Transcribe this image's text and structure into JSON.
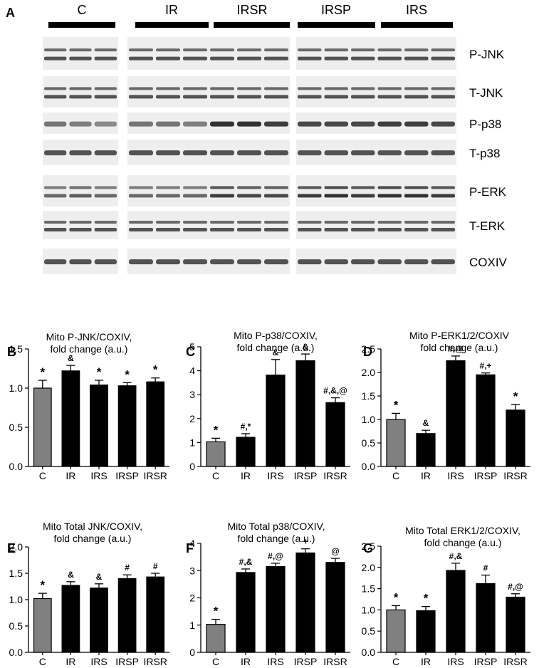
{
  "panel_a": {
    "letter": "A",
    "groups": [
      "C",
      "IR",
      "IRSR",
      "IRSP",
      "IRS"
    ],
    "rows": [
      "P-JNK",
      "T-JNK",
      "P-p38",
      "T-p38",
      "P-ERK",
      "T-ERK",
      "COXIV"
    ]
  },
  "chart_data": [
    {
      "panel": "B",
      "type": "bar",
      "title": [
        "Mito P-JNK/COXIV,",
        "fold change (a.u.)"
      ],
      "categories": [
        "C",
        "IR",
        "IRS",
        "IRSP",
        "IRSR"
      ],
      "values": [
        1.0,
        1.22,
        1.04,
        1.03,
        1.08
      ],
      "errors": [
        0.1,
        0.07,
        0.06,
        0.04,
        0.05
      ],
      "annotations": [
        "*",
        "&",
        "*",
        "*",
        "*"
      ],
      "bar_colors": [
        "#808080",
        "#000000",
        "#000000",
        "#000000",
        "#000000"
      ],
      "ylim": [
        0,
        1.5
      ],
      "yticks": [
        "0.0",
        "0.5",
        "1.0",
        "1.5"
      ]
    },
    {
      "panel": "C",
      "type": "bar",
      "title": [
        "Mito P-p38/COXIV,",
        "fold change (a.u.)"
      ],
      "categories": [
        "C",
        "IR",
        "IRS",
        "IRSP",
        "IRSR"
      ],
      "values": [
        1.03,
        1.22,
        3.82,
        4.42,
        2.67
      ],
      "errors": [
        0.15,
        0.15,
        0.65,
        0.28,
        0.2
      ],
      "annotations": [
        "*",
        "#,*",
        "&",
        "&",
        "#,&,@"
      ],
      "bar_colors": [
        "#808080",
        "#000000",
        "#000000",
        "#000000",
        "#000000"
      ],
      "ylim": [
        0,
        5
      ],
      "yticks": [
        "0",
        "1",
        "2",
        "3",
        "4",
        "5"
      ]
    },
    {
      "panel": "D",
      "type": "bar",
      "title": [
        "Mito P-ERK1/2/COXIV",
        "fold change (a.u.)"
      ],
      "categories": [
        "C",
        "IR",
        "IRS",
        "IRSP",
        "IRSR"
      ],
      "values": [
        1.0,
        0.7,
        2.25,
        1.95,
        1.2
      ],
      "errors": [
        0.13,
        0.07,
        0.1,
        0.04,
        0.12
      ],
      "annotations": [
        "*",
        "&",
        "#,@",
        "#,+",
        "*"
      ],
      "bar_colors": [
        "#808080",
        "#000000",
        "#000000",
        "#000000",
        "#000000"
      ],
      "ylim": [
        0,
        2.5
      ],
      "yticks": [
        "0.0",
        "0.5",
        "1.0",
        "1.5",
        "2.0",
        "2.5"
      ]
    },
    {
      "panel": "E",
      "type": "bar",
      "title": [
        "Mito Total JNK/COXIV,",
        "fold change (a.u.)"
      ],
      "categories": [
        "C",
        "IR",
        "IRS",
        "IRSP",
        "IRSR"
      ],
      "values": [
        1.02,
        1.27,
        1.22,
        1.4,
        1.43
      ],
      "errors": [
        0.1,
        0.07,
        0.08,
        0.07,
        0.07
      ],
      "annotations": [
        "*",
        "&",
        "&",
        "#",
        "#"
      ],
      "bar_colors": [
        "#808080",
        "#000000",
        "#000000",
        "#000000",
        "#000000"
      ],
      "ylim": [
        0,
        2.0
      ],
      "yticks": [
        "0.0",
        "0.5",
        "1.0",
        "1.5",
        "2.0"
      ]
    },
    {
      "panel": "F",
      "type": "bar",
      "title": [
        "Mito Total p38/COXIV,",
        "fold change (a.u.)"
      ],
      "categories": [
        "C",
        "IR",
        "IRS",
        "IRSP",
        "IRSR"
      ],
      "values": [
        1.03,
        2.93,
        3.15,
        3.65,
        3.3
      ],
      "errors": [
        0.18,
        0.13,
        0.12,
        0.15,
        0.15
      ],
      "annotations": [
        "*",
        "#,&",
        "#,@",
        "+",
        "@"
      ],
      "bar_colors": [
        "#808080",
        "#000000",
        "#000000",
        "#000000",
        "#000000"
      ],
      "ylim": [
        0,
        4
      ],
      "yticks": [
        "0",
        "1",
        "2",
        "3",
        "4"
      ]
    },
    {
      "panel": "G",
      "type": "bar",
      "title": [
        "Mito Total ERK1/2/COXIV,",
        "fold change (a.u.)"
      ],
      "categories": [
        "C",
        "IR",
        "IRS",
        "IRSP",
        "IRSR"
      ],
      "values": [
        1.0,
        0.98,
        1.93,
        1.62,
        1.3
      ],
      "errors": [
        0.1,
        0.1,
        0.17,
        0.2,
        0.08
      ],
      "annotations": [
        "*",
        "*",
        "#,&",
        "#",
        "#,@"
      ],
      "bar_colors": [
        "#808080",
        "#000000",
        "#000000",
        "#000000",
        "#000000"
      ],
      "ylim": [
        0,
        2.5
      ],
      "yticks": [
        "0.0",
        "0.5",
        "1.0",
        "1.5",
        "2.0",
        "2.5"
      ]
    }
  ]
}
